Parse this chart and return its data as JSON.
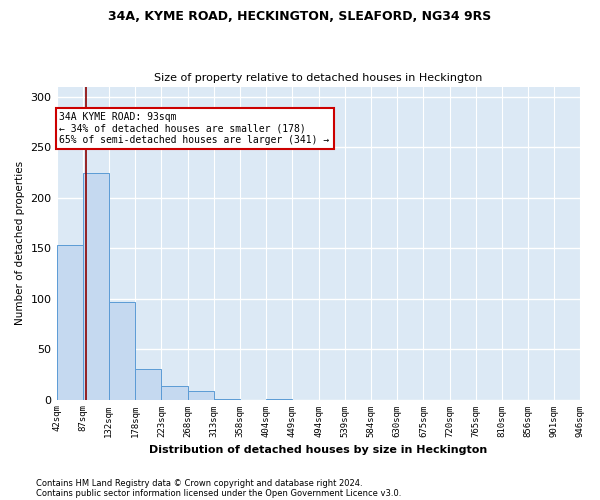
{
  "title1": "34A, KYME ROAD, HECKINGTON, SLEAFORD, NG34 9RS",
  "title2": "Size of property relative to detached houses in Heckington",
  "xlabel": "Distribution of detached houses by size in Heckington",
  "ylabel": "Number of detached properties",
  "bar_color": "#c5d9f0",
  "bar_edge_color": "#5b9bd5",
  "vline_color": "#8b0000",
  "annotation_text": "34A KYME ROAD: 93sqm\n← 34% of detached houses are smaller (178)\n65% of semi-detached houses are larger (341) →",
  "property_size": 93,
  "bin_edges": [
    42,
    87,
    132,
    178,
    223,
    268,
    313,
    358,
    404,
    449,
    494,
    539,
    584,
    630,
    675,
    720,
    765,
    810,
    856,
    901,
    946
  ],
  "bin_labels": [
    "42sqm",
    "87sqm",
    "132sqm",
    "178sqm",
    "223sqm",
    "268sqm",
    "313sqm",
    "358sqm",
    "404sqm",
    "449sqm",
    "494sqm",
    "539sqm",
    "584sqm",
    "630sqm",
    "675sqm",
    "720sqm",
    "765sqm",
    "810sqm",
    "856sqm",
    "901sqm",
    "946sqm"
  ],
  "bar_heights": [
    153,
    224,
    97,
    30,
    13,
    8,
    1,
    0,
    1,
    0,
    0,
    0,
    0,
    0,
    0,
    0,
    0,
    0,
    0,
    0
  ],
  "ylim": [
    0,
    310
  ],
  "yticks": [
    0,
    50,
    100,
    150,
    200,
    250,
    300
  ],
  "background_color": "#dce9f5",
  "fig_background": "#ffffff",
  "footer1": "Contains HM Land Registry data © Crown copyright and database right 2024.",
  "footer2": "Contains public sector information licensed under the Open Government Licence v3.0."
}
